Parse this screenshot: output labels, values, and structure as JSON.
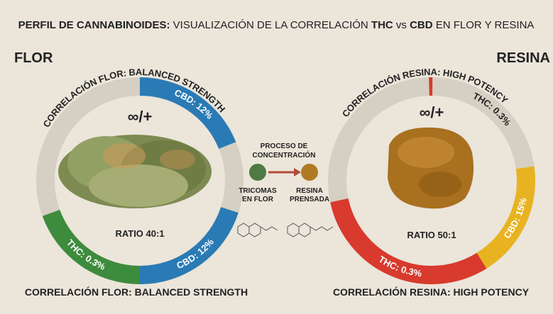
{
  "header": {
    "title_parts": [
      "PERFIL DE CANNABINOIDES:",
      " VISUALIZACIÓN DE LA CORRELACIÓN ",
      "THC",
      " vs ",
      "CBD",
      " EN FLOR Y RESINA"
    ]
  },
  "flor": {
    "label": "FLOR",
    "arc_label": "CORRELACIÓN FLOR: BALANCED STRENGTH",
    "segment_top": "CBD: 12%",
    "symbol": "∞/+",
    "ratio": "RATIO 40:1",
    "segment_left": "THC: 0.3%",
    "segment_right": "CBD: 12%",
    "caption": "CORRELACIÓN FLOR: BALANCED STRENGTH"
  },
  "resina": {
    "label": "RESINA",
    "arc_label": "CORRELACIÓN RESINA: HIGH POTENCY",
    "segment_top": "THC: 0.3%",
    "symbol": "∞/+",
    "ratio": "RATIO 50:1",
    "segment_right": "CBD: 15%",
    "segment_bottom": "THC: 0.3%",
    "caption": "CORRELACIÓN RESINA: HIGH POTENCY"
  },
  "process": {
    "title_lines": [
      "PROCESO DE",
      "CONCENTRACIÓN"
    ],
    "from_lines": [
      "TRICOMAS",
      "EN FLOR"
    ],
    "to_lines": [
      "RESINA",
      "PRENSADA"
    ]
  }
}
